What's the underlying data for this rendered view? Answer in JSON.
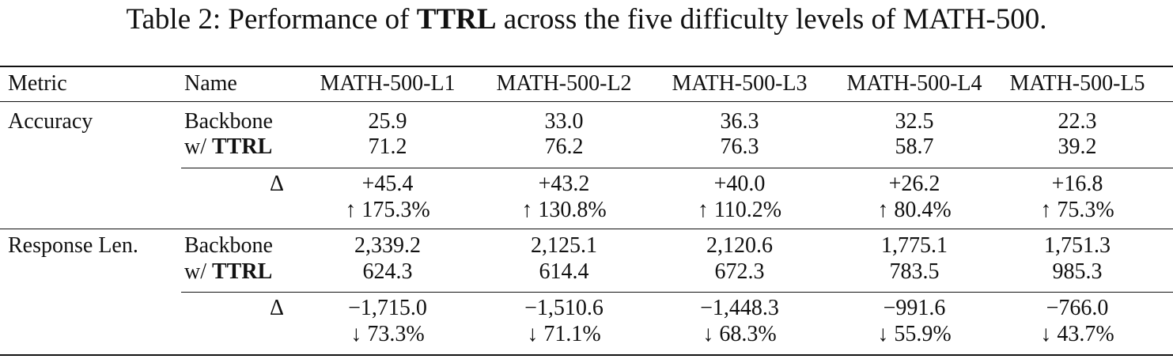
{
  "caption": {
    "prefix": "Table 2: Performance of ",
    "bold": "TTRL",
    "suffix": " across the five difficulty levels of MATH-500."
  },
  "headers": [
    "Metric",
    "Name",
    "MATH-500-L1",
    "MATH-500-L2",
    "MATH-500-L3",
    "MATH-500-L4",
    "MATH-500-L5"
  ],
  "ttrl_label": {
    "prefix": "w/ ",
    "bold": "TTRL"
  },
  "delta_symbol": "Δ",
  "accuracy": {
    "metric": "Accuracy",
    "backbone_label": "Backbone",
    "backbone": [
      "25.9",
      "33.0",
      "36.3",
      "32.5",
      "22.3"
    ],
    "ttrl": [
      "71.2",
      "76.2",
      "76.3",
      "58.7",
      "39.2"
    ],
    "delta": [
      "+45.4",
      "+43.2",
      "+40.0",
      "+26.2",
      "+16.8"
    ],
    "delta_pct": [
      "↑ 175.3%",
      "↑ 130.8%",
      "↑ 110.2%",
      "↑ 80.4%",
      "↑ 75.3%"
    ]
  },
  "response_len": {
    "metric": "Response Len.",
    "backbone_label": "Backbone",
    "backbone": [
      "2,339.2",
      "2,125.1",
      "2,120.6",
      "1,775.1",
      "1,751.3"
    ],
    "ttrl": [
      "624.3",
      "614.4",
      "672.3",
      "783.5",
      "985.3"
    ],
    "delta": [
      "−1,715.0",
      "−1,510.6",
      "−1,448.3",
      "−991.6",
      "−766.0"
    ],
    "delta_pct": [
      "↓ 73.3%",
      "↓ 71.1%",
      "↓ 68.3%",
      "↓ 55.9%",
      "↓ 43.7%"
    ]
  }
}
